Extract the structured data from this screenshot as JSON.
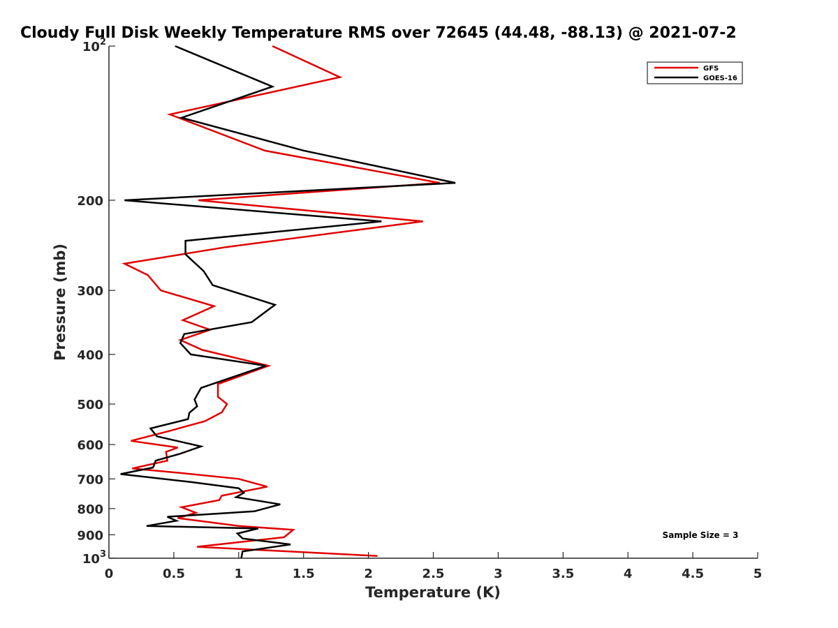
{
  "chart_data": {
    "type": "line",
    "title": "Cloudy Full Disk Weekly Temperature RMS over 72645 (44.48, -88.13) @ 2021-07-2",
    "xlabel": "Temperature (K)",
    "ylabel": "Pressure (mb)",
    "xlim": [
      0,
      5
    ],
    "ylim": [
      100,
      1000
    ],
    "yscale": "log",
    "y_reversed": true,
    "grid": false,
    "legend_position": "top-right",
    "x_ticks": [
      {
        "value": 0,
        "label": "0"
      },
      {
        "value": 0.5,
        "label": "0.5"
      },
      {
        "value": 1,
        "label": "1"
      },
      {
        "value": 1.5,
        "label": "1.5"
      },
      {
        "value": 2,
        "label": "2"
      },
      {
        "value": 2.5,
        "label": "2.5"
      },
      {
        "value": 3,
        "label": "3"
      },
      {
        "value": 3.5,
        "label": "3.5"
      },
      {
        "value": 4,
        "label": "4"
      },
      {
        "value": 4.5,
        "label": "4.5"
      },
      {
        "value": 5,
        "label": "5"
      }
    ],
    "y_ticks": [
      {
        "value": 100,
        "label": "10",
        "sup": "2"
      },
      {
        "value": 200,
        "label": "200"
      },
      {
        "value": 300,
        "label": "300"
      },
      {
        "value": 400,
        "label": "400"
      },
      {
        "value": 500,
        "label": "500"
      },
      {
        "value": 600,
        "label": "600"
      },
      {
        "value": 700,
        "label": "700"
      },
      {
        "value": 800,
        "label": "800"
      },
      {
        "value": 900,
        "label": "900"
      },
      {
        "value": 1000,
        "label": "10",
        "sup": "3"
      }
    ],
    "annotation": "Sample Size = 3",
    "series": [
      {
        "name": "GFS",
        "color": "#e00000",
        "points": [
          [
            1.26,
            100
          ],
          [
            1.78,
            115
          ],
          [
            0.47,
            136
          ],
          [
            1.2,
            160
          ],
          [
            2.55,
            185
          ],
          [
            0.69,
            200
          ],
          [
            2.42,
            220
          ],
          [
            0.9,
            247
          ],
          [
            0.12,
            266
          ],
          [
            0.3,
            280
          ],
          [
            0.4,
            300
          ],
          [
            0.81,
            322
          ],
          [
            0.57,
            343
          ],
          [
            0.78,
            358
          ],
          [
            0.55,
            375
          ],
          [
            0.72,
            392
          ],
          [
            1.23,
            421
          ],
          [
            0.84,
            457
          ],
          [
            0.84,
            484
          ],
          [
            0.91,
            500
          ],
          [
            0.87,
            519
          ],
          [
            0.74,
            540
          ],
          [
            0.48,
            563
          ],
          [
            0.17,
            590
          ],
          [
            0.53,
            608
          ],
          [
            0.44,
            620
          ],
          [
            0.45,
            645
          ],
          [
            0.18,
            668
          ],
          [
            0.51,
            680
          ],
          [
            1.0,
            700
          ],
          [
            1.22,
            725
          ],
          [
            0.87,
            755
          ],
          [
            0.85,
            770
          ],
          [
            0.56,
            795
          ],
          [
            0.67,
            815
          ],
          [
            0.53,
            835
          ],
          [
            1.0,
            865
          ],
          [
            1.42,
            880
          ],
          [
            1.35,
            910
          ],
          [
            0.68,
            950
          ],
          [
            2.07,
            990
          ]
        ]
      },
      {
        "name": "GOES-16",
        "color": "#000000",
        "points": [
          [
            0.51,
            100
          ],
          [
            1.26,
            120
          ],
          [
            0.56,
            138
          ],
          [
            1.5,
            160
          ],
          [
            2.67,
            185
          ],
          [
            0.12,
            200
          ],
          [
            2.1,
            220
          ],
          [
            0.59,
            240
          ],
          [
            0.59,
            255
          ],
          [
            0.73,
            275
          ],
          [
            0.8,
            293
          ],
          [
            1.28,
            320
          ],
          [
            1.1,
            346
          ],
          [
            0.58,
            365
          ],
          [
            0.55,
            380
          ],
          [
            0.63,
            400
          ],
          [
            1.21,
            421
          ],
          [
            0.71,
            465
          ],
          [
            0.66,
            490
          ],
          [
            0.68,
            505
          ],
          [
            0.62,
            520
          ],
          [
            0.61,
            535
          ],
          [
            0.32,
            558
          ],
          [
            0.37,
            578
          ],
          [
            0.71,
            605
          ],
          [
            0.55,
            625
          ],
          [
            0.36,
            645
          ],
          [
            0.34,
            665
          ],
          [
            0.09,
            685
          ],
          [
            0.63,
            710
          ],
          [
            1.0,
            730
          ],
          [
            1.04,
            745
          ],
          [
            0.98,
            760
          ],
          [
            1.32,
            785
          ],
          [
            1.12,
            810
          ],
          [
            0.45,
            830
          ],
          [
            0.52,
            845
          ],
          [
            0.29,
            865
          ],
          [
            1.15,
            875
          ],
          [
            0.99,
            895
          ],
          [
            1.03,
            915
          ],
          [
            1.4,
            940
          ],
          [
            1.03,
            970
          ],
          [
            1.02,
            1000
          ]
        ]
      }
    ]
  }
}
